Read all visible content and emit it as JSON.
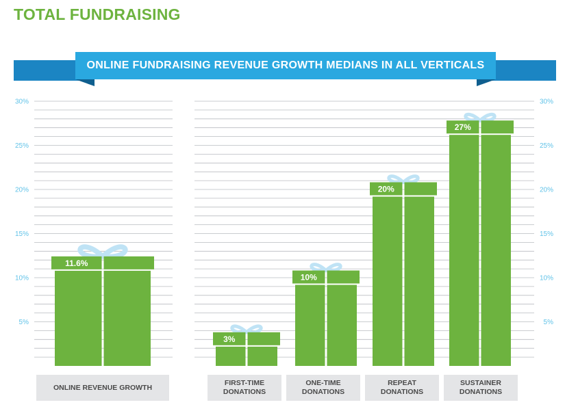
{
  "header": {
    "title": "TOTAL FUNDRAISING"
  },
  "colors": {
    "title": "#6db33f",
    "bar": "#6db33f",
    "banner": "#2aa8e0",
    "banner_dark": "#1b85c3",
    "ribbon": "#bfe3f5",
    "grid": "#b9bcc0",
    "tick": "#62c3e8",
    "category_box": "#e4e5e7"
  },
  "chart_data": {
    "type": "bar",
    "title": "ONLINE FUNDRAISING REVENUE GROWTH MEDIANS IN ALL VERTICALS",
    "ylim": [
      0,
      30
    ],
    "yticks": [
      5,
      10,
      15,
      20,
      25,
      30
    ],
    "ytick_labels": [
      "5%",
      "10%",
      "15%",
      "20%",
      "25%",
      "30%"
    ],
    "grid": true,
    "panels": [
      {
        "categories": [
          "ONLINE REVENUE GROWTH"
        ],
        "values": [
          11.6
        ],
        "value_labels": [
          "11.6%"
        ]
      },
      {
        "categories": [
          "FIRST-TIME\nDONATIONS",
          "ONE-TIME\nDONATIONS",
          "REPEAT\nDONATIONS",
          "SUSTAINER\nDONATIONS"
        ],
        "values": [
          3,
          10,
          20,
          27
        ],
        "value_labels": [
          "3%",
          "10%",
          "20%",
          "27%"
        ]
      }
    ]
  }
}
